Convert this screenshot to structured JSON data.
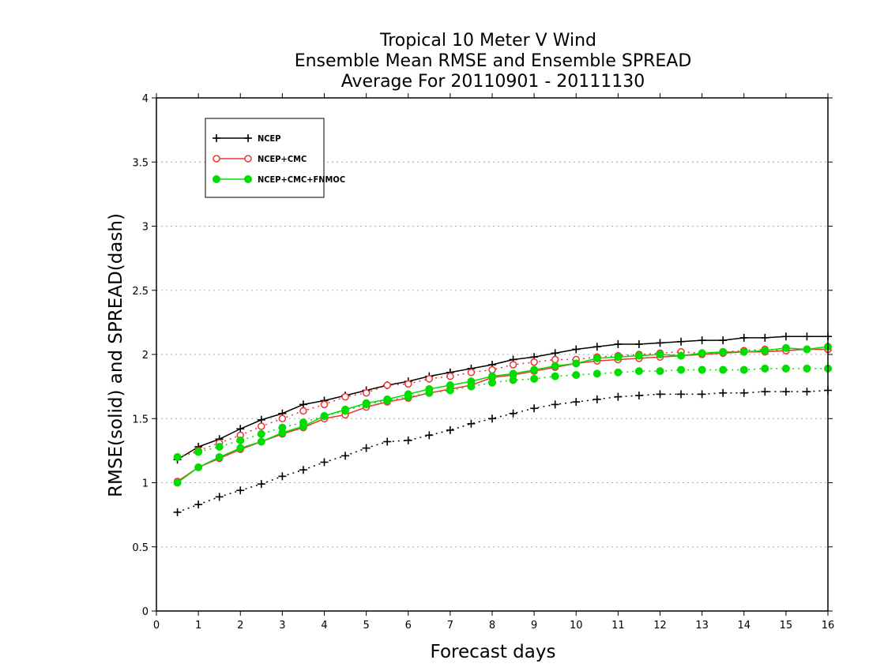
{
  "chart_data": {
    "type": "line",
    "title": [
      "Tropical 10 Meter V Wind",
      "Ensemble Mean RMSE and Ensemble SPREAD",
      "Average For 20110901 - 20111130"
    ],
    "xlabel": "Forecast days",
    "ylabel": "RMSE(solid) and SPREAD(dash)",
    "xlim": [
      0,
      16
    ],
    "ylim": [
      0,
      4
    ],
    "xticks": [
      "0",
      "1",
      "2",
      "3",
      "4",
      "5",
      "6",
      "7",
      "8",
      "9",
      "10",
      "11",
      "12",
      "13",
      "14",
      "15",
      "16"
    ],
    "yticks": [
      "0",
      "0.5",
      "1",
      "1.5",
      "2",
      "2.5",
      "3",
      "3.5",
      "4"
    ],
    "grid": "horizontal dotted",
    "legend_position": "top-left",
    "x": [
      0.5,
      1,
      1.5,
      2,
      2.5,
      3,
      3.5,
      4,
      4.5,
      5,
      5.5,
      6,
      6.5,
      7,
      7.5,
      8,
      8.5,
      9,
      9.5,
      10,
      10.5,
      11,
      11.5,
      12,
      12.5,
      13,
      13.5,
      14,
      14.5,
      15,
      15.5,
      16
    ],
    "series": [
      {
        "name": "NCEP",
        "color": "#000000",
        "marker": "plus",
        "rmse": [
          1.18,
          1.28,
          1.34,
          1.42,
          1.49,
          1.54,
          1.61,
          1.64,
          1.68,
          1.72,
          1.76,
          1.79,
          1.83,
          1.86,
          1.89,
          1.92,
          1.96,
          1.98,
          2.01,
          2.04,
          2.06,
          2.08,
          2.08,
          2.09,
          2.1,
          2.11,
          2.11,
          2.13,
          2.13,
          2.14,
          2.14,
          2.14
        ],
        "spread": [
          0.77,
          0.83,
          0.89,
          0.94,
          0.99,
          1.05,
          1.1,
          1.16,
          1.21,
          1.27,
          1.32,
          1.33,
          1.37,
          1.41,
          1.46,
          1.5,
          1.54,
          1.58,
          1.61,
          1.63,
          1.65,
          1.67,
          1.68,
          1.69,
          1.69,
          1.69,
          1.7,
          1.7,
          1.71,
          1.71,
          1.71,
          1.72
        ]
      },
      {
        "name": "NCEP+CMC",
        "color": "#ee3333",
        "marker": "open-circle",
        "rmse": [
          1.01,
          1.12,
          1.19,
          1.26,
          1.32,
          1.38,
          1.43,
          1.5,
          1.53,
          1.59,
          1.63,
          1.66,
          1.7,
          1.73,
          1.76,
          1.82,
          1.84,
          1.87,
          1.9,
          1.93,
          1.95,
          1.96,
          1.97,
          1.98,
          1.99,
          2.0,
          2.01,
          2.02,
          2.02,
          2.03,
          2.04,
          2.04
        ],
        "spread": [
          1.2,
          1.25,
          1.31,
          1.37,
          1.44,
          1.5,
          1.56,
          1.61,
          1.67,
          1.7,
          1.76,
          1.77,
          1.81,
          1.83,
          1.86,
          1.88,
          1.92,
          1.94,
          1.96,
          1.96,
          1.98,
          1.99,
          2.0,
          2.01,
          2.02,
          2.01,
          2.02,
          2.03,
          2.04,
          2.03,
          2.04,
          2.04
        ]
      },
      {
        "name": "NCEP+CMC+FNMOC",
        "color": "#00dd00",
        "marker": "filled-circle",
        "rmse": [
          1.0,
          1.12,
          1.2,
          1.27,
          1.32,
          1.39,
          1.44,
          1.52,
          1.57,
          1.62,
          1.65,
          1.69,
          1.73,
          1.76,
          1.79,
          1.83,
          1.85,
          1.88,
          1.91,
          1.93,
          1.97,
          1.98,
          1.99,
          2.0,
          1.99,
          2.01,
          2.02,
          2.02,
          2.03,
          2.05,
          2.04,
          2.06
        ],
        "spread": [
          1.2,
          1.24,
          1.28,
          1.33,
          1.38,
          1.43,
          1.47,
          1.52,
          1.56,
          1.61,
          1.64,
          1.67,
          1.7,
          1.72,
          1.75,
          1.78,
          1.8,
          1.81,
          1.83,
          1.84,
          1.85,
          1.86,
          1.87,
          1.87,
          1.88,
          1.88,
          1.88,
          1.88,
          1.89,
          1.89,
          1.89,
          1.89
        ]
      }
    ]
  }
}
